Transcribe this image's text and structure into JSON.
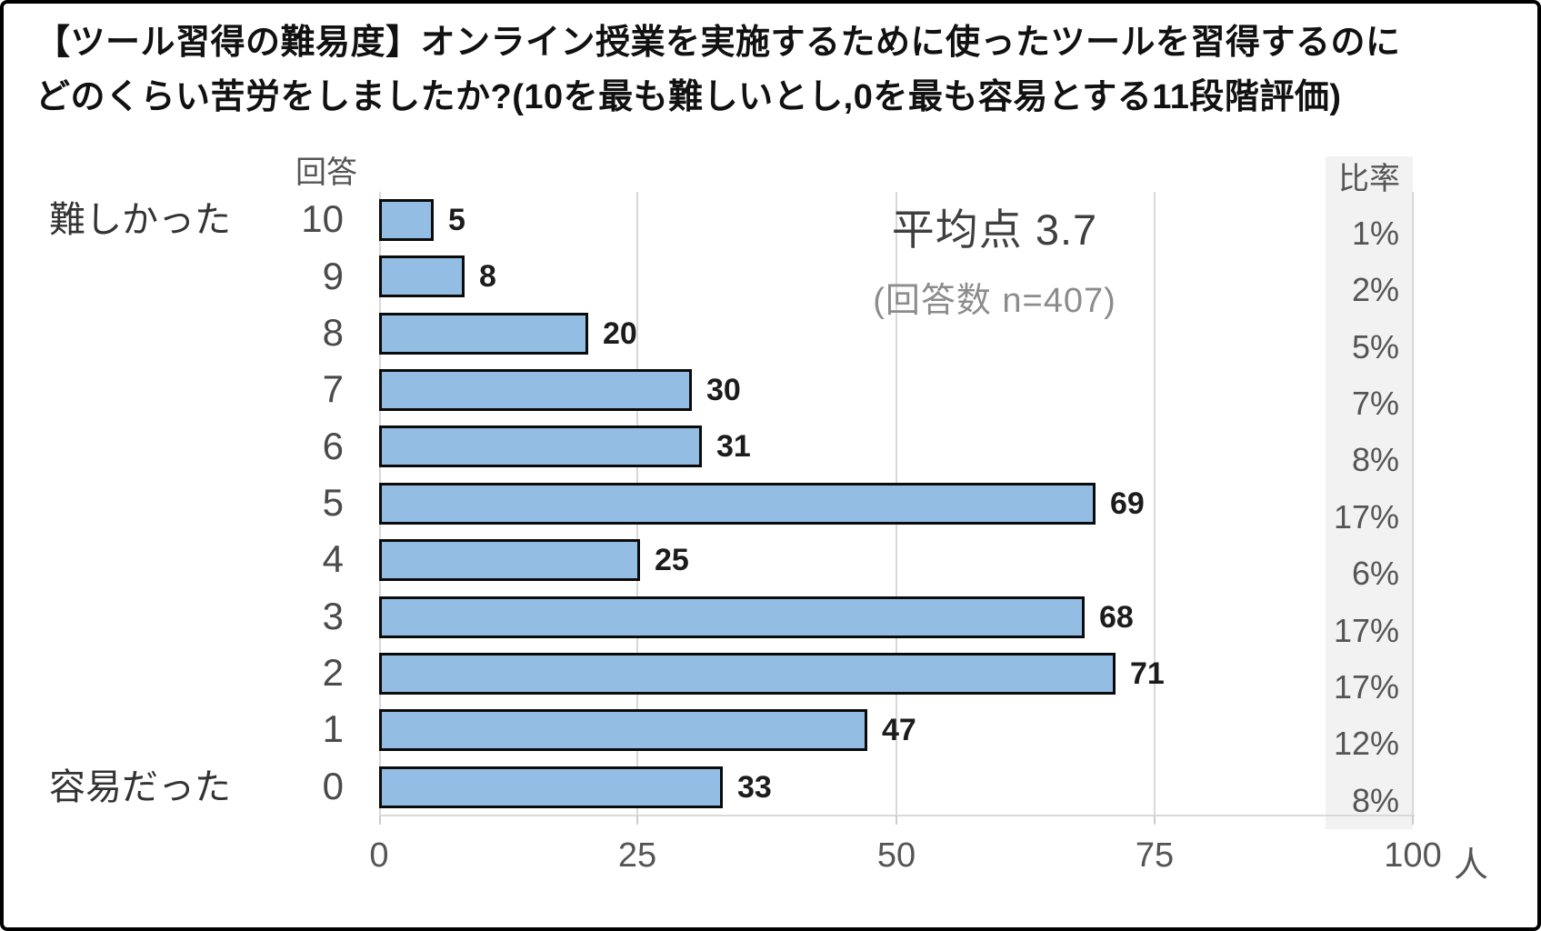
{
  "title": {
    "line1": "【ツール習得の難易度】オンライン授業を実施するために使ったツールを習得するのに",
    "line2": "どのくらい苦労をしましたか?(10を最も難しいとし,0を最も容易とする11段階評価)"
  },
  "chart_data": {
    "type": "bar",
    "orientation": "horizontal",
    "value_axis_title": "回答",
    "scale_top_label": "難しかった",
    "scale_bottom_label": "容易だった",
    "categories": [
      "10",
      "9",
      "8",
      "7",
      "6",
      "5",
      "4",
      "3",
      "2",
      "1",
      "0"
    ],
    "values": [
      5,
      8,
      20,
      30,
      31,
      69,
      25,
      68,
      71,
      47,
      33
    ],
    "percent_column_header": "比率",
    "percentages": [
      "1%",
      "2%",
      "5%",
      "7%",
      "8%",
      "17%",
      "6%",
      "17%",
      "17%",
      "12%",
      "8%"
    ],
    "annotation": {
      "average": "平均点 3.7",
      "n": "(回答数 n=407)"
    },
    "x_ticks": [
      "0",
      "25",
      "50",
      "75",
      "100"
    ],
    "x_tick_values": [
      0,
      25,
      50,
      75,
      100
    ],
    "x_unit": "人",
    "xlim": [
      0,
      100
    ],
    "grid": true,
    "colors": {
      "bar_fill": "#94bde3",
      "bar_border": "#0b0b0b",
      "gridline": "#d9d9d9",
      "percent_column_bg": "#f2f2f2",
      "title_text": "#111111",
      "axis_text": "#555555"
    }
  }
}
